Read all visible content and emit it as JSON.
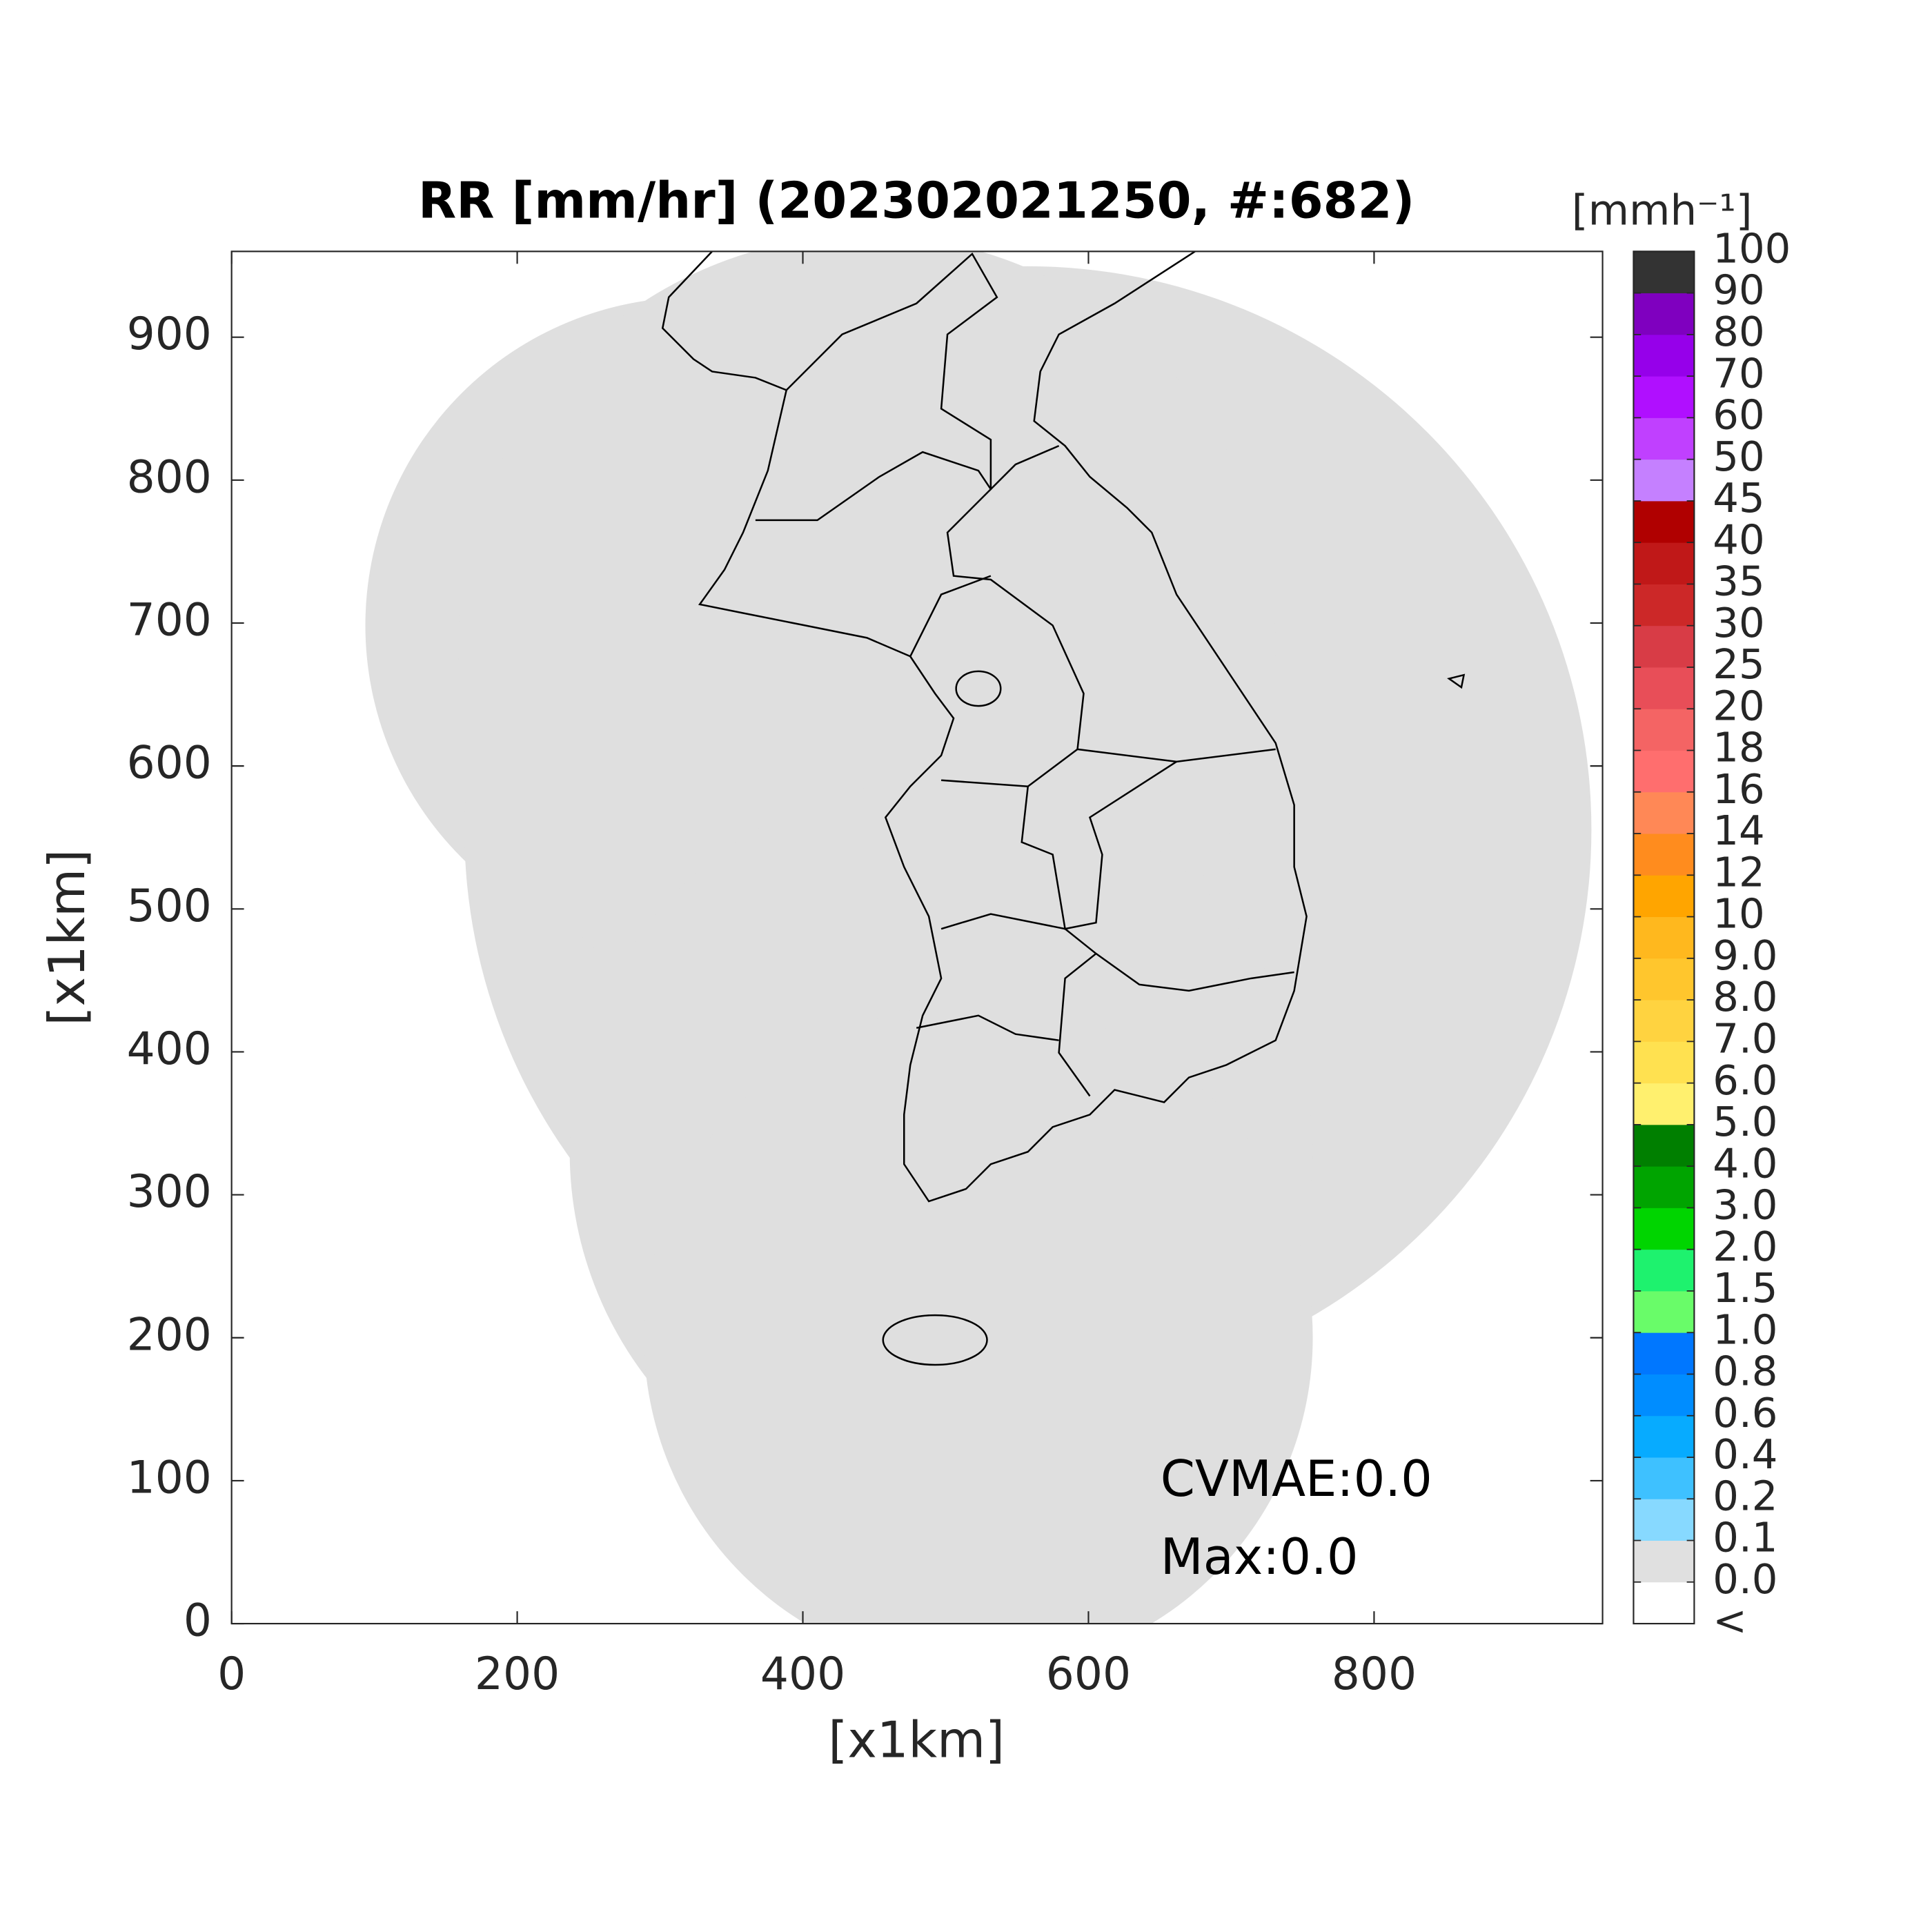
{
  "chart_data": {
    "type": "map",
    "title": "RR [mm/hr] (202302021250, #:682)",
    "xlabel": "[x1km]",
    "ylabel": "[x1km]",
    "xlim": [
      0,
      960
    ],
    "ylim": [
      0,
      960
    ],
    "xticks": [
      0,
      200,
      400,
      600,
      800
    ],
    "yticks": [
      0,
      100,
      200,
      300,
      400,
      500,
      600,
      700,
      800,
      900
    ],
    "annotations": [
      "CVMAE:0.0",
      "Max:0.0"
    ],
    "colorbar": {
      "title": "[mmh⁻¹]",
      "labels": [
        "<",
        "0.0",
        "0.1",
        "0.2",
        "0.4",
        "0.6",
        "0.8",
        "1.0",
        "1.5",
        "2.0",
        "3.0",
        "4.0",
        "5.0",
        "6.0",
        "7.0",
        "8.0",
        "9.0",
        "10",
        "12",
        "14",
        "16",
        "18",
        "20",
        "25",
        "30",
        "35",
        "40",
        "45",
        "50",
        "60",
        "70",
        "80",
        "90",
        "100"
      ],
      "colors": [
        "#ffffff",
        "#e0e0e0",
        "#87d9ff",
        "#3ec1ff",
        "#07abff",
        "#008dff",
        "#0077ff",
        "#69fc69",
        "#1ef26e",
        "#00d500",
        "#00a400",
        "#007f00",
        "#fff06e",
        "#ffe150",
        "#ffd340",
        "#ffc62d",
        "#ffb81e",
        "#ffa500",
        "#ff8c1e",
        "#ff8856",
        "#ff6e6e",
        "#f46464",
        "#e84e58",
        "#d83c46",
        "#cc2828",
        "#c01818",
        "#b00000",
        "#c580ff",
        "#c040ff",
        "#b00fff",
        "#9600ea",
        "#7f00bf",
        "#333333"
      ]
    }
  }
}
